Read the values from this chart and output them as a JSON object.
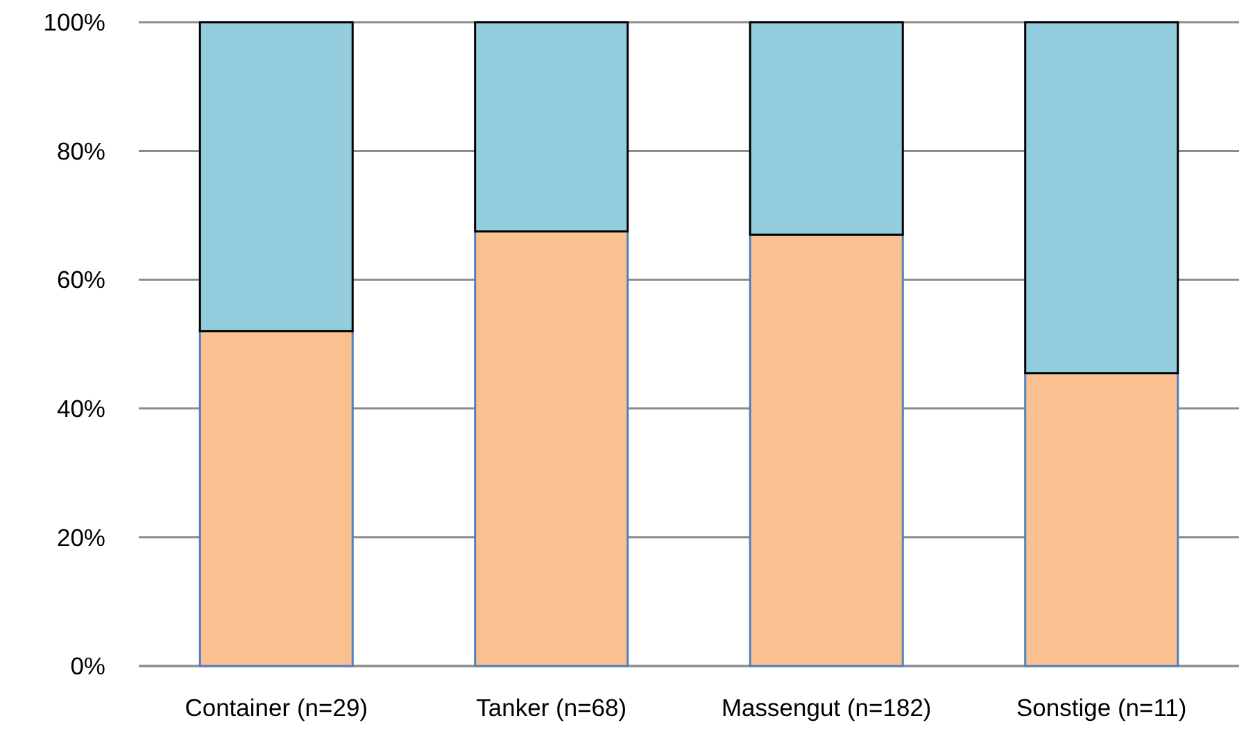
{
  "chart_data": {
    "type": "bar",
    "stacked": true,
    "categories": [
      "Container (n=29)",
      "Tanker (n=68)",
      "Massengut (n=182)",
      "Sonstige (n=11)"
    ],
    "series": [
      {
        "color": "#fac090",
        "values": [
          52,
          67.5,
          67,
          45.5
        ]
      },
      {
        "color": "#93cddd",
        "values": [
          48,
          32.5,
          33,
          54.5
        ]
      }
    ],
    "ylim": [
      0,
      100
    ],
    "yticks": [
      {
        "value": 0,
        "label": "0%"
      },
      {
        "value": 20,
        "label": "20%"
      },
      {
        "value": 40,
        "label": "40%"
      },
      {
        "value": 60,
        "label": "60%"
      },
      {
        "value": 80,
        "label": "80%"
      },
      {
        "value": 100,
        "label": "100%"
      }
    ],
    "grid": "y"
  }
}
